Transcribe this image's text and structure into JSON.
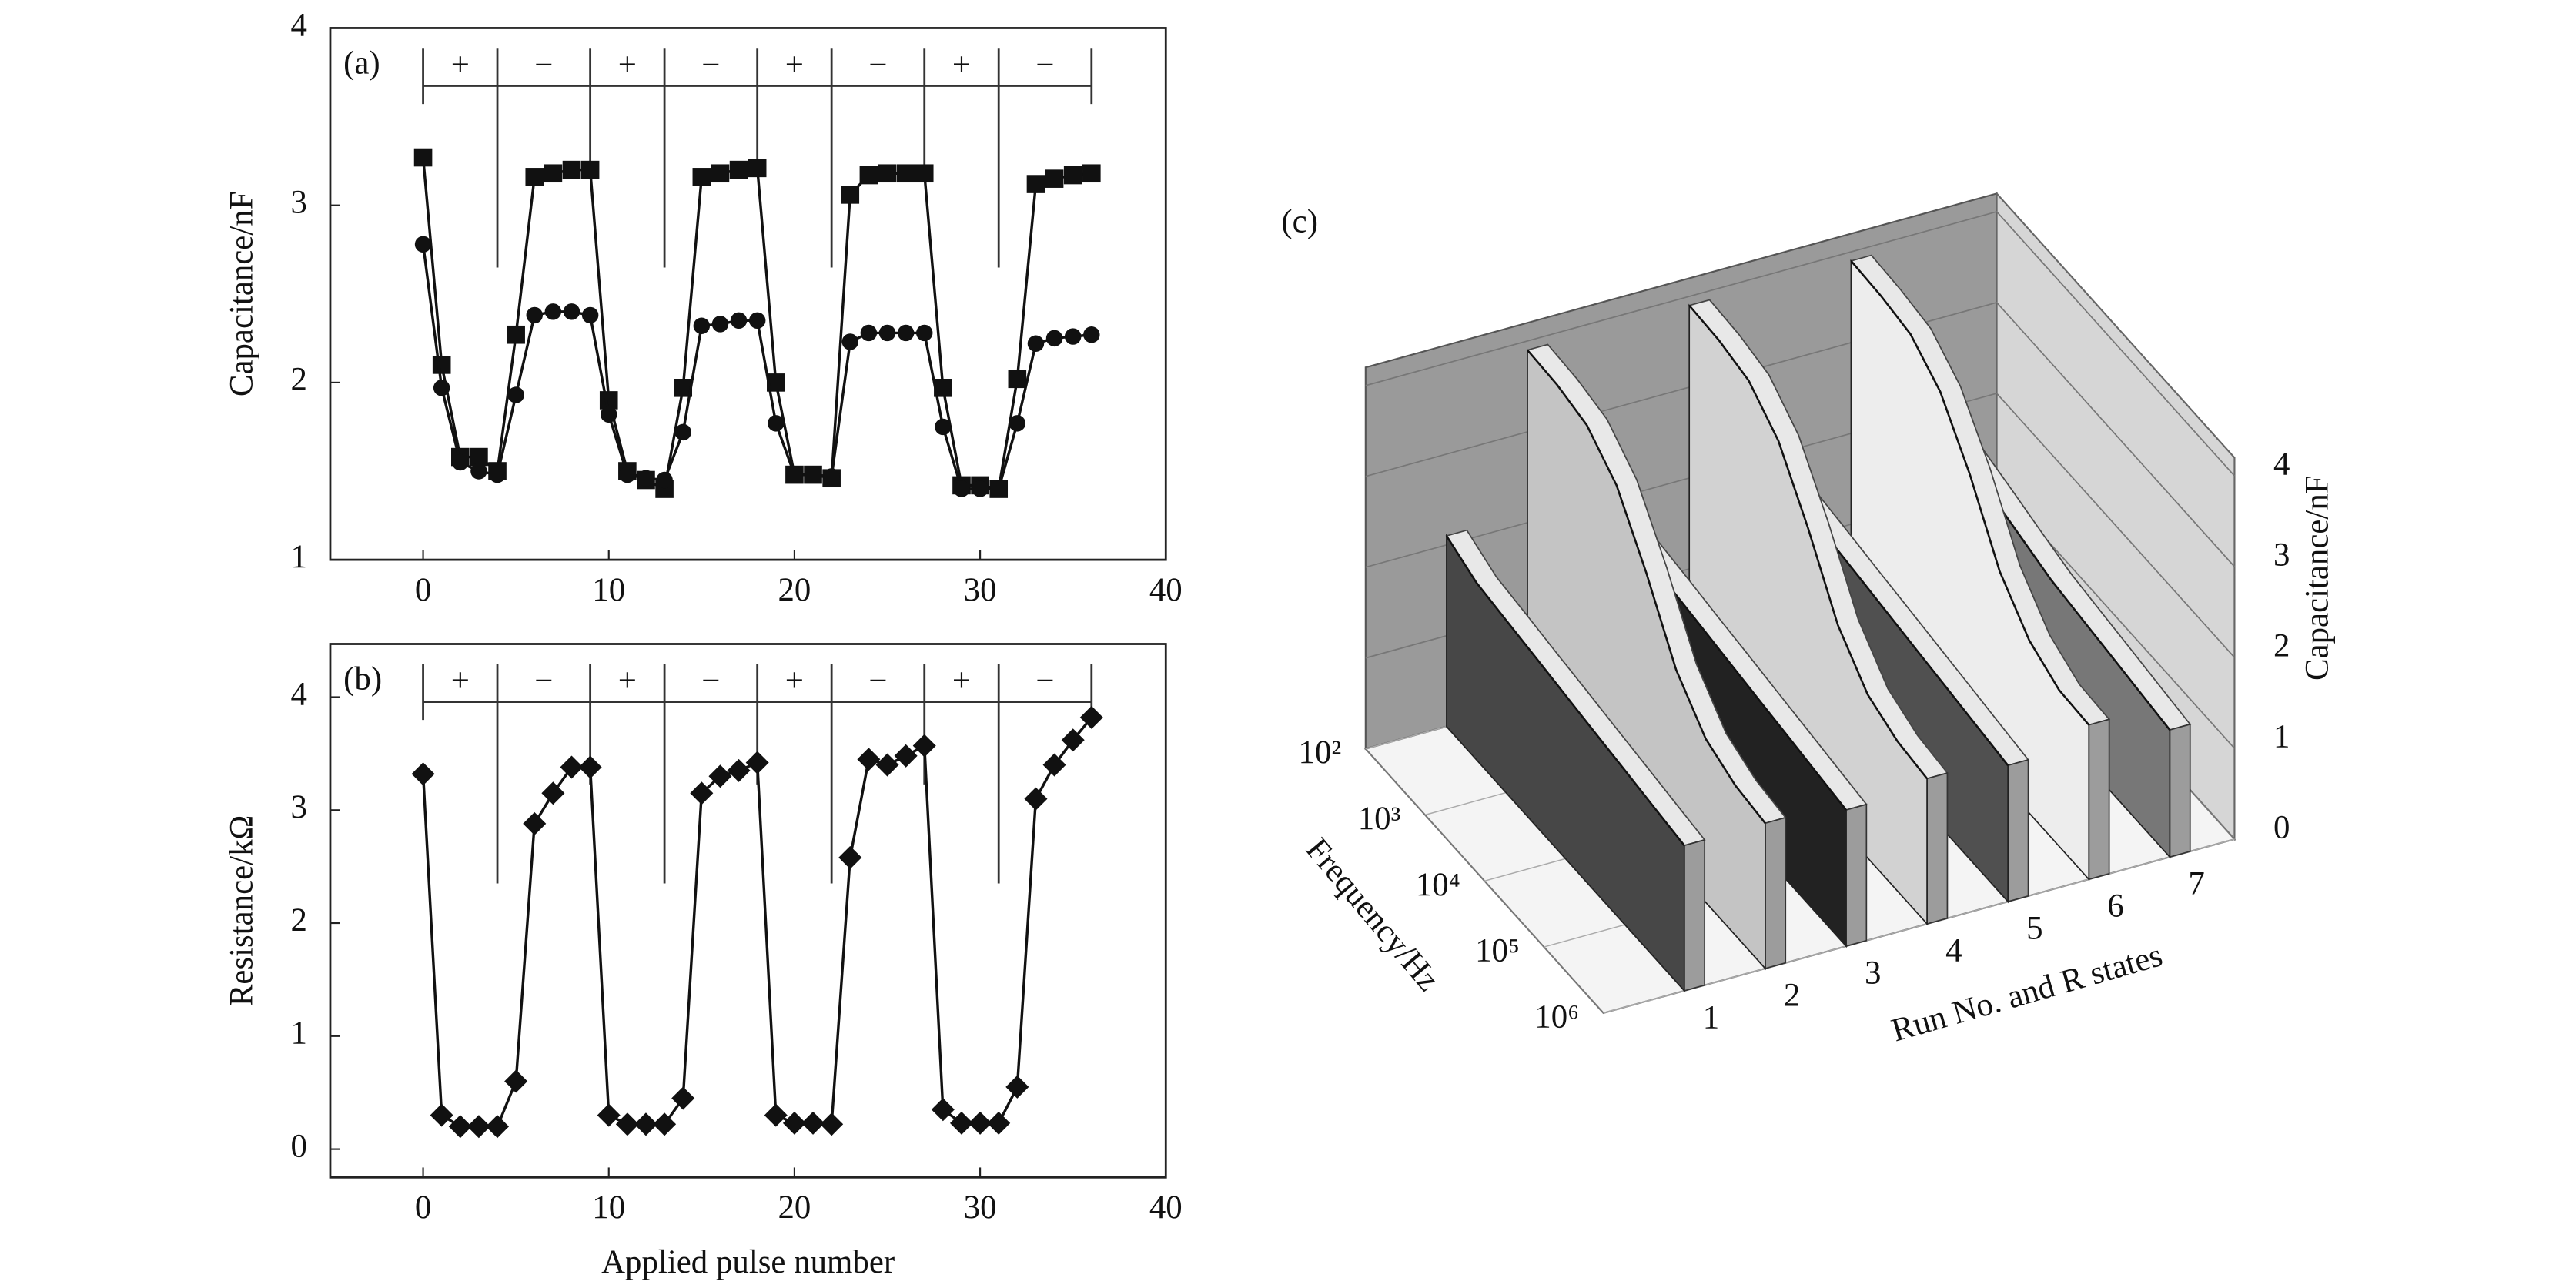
{
  "chart_data": [
    {
      "type": "line",
      "panel_label": "(a)",
      "ylabel": "Capacitance/nF",
      "x": [
        0,
        1,
        2,
        3,
        4,
        5,
        6,
        7,
        8,
        9,
        10,
        11,
        12,
        13,
        14,
        15,
        16,
        17,
        18,
        19,
        20,
        21,
        22,
        23,
        24,
        25,
        26,
        27,
        28,
        29,
        30,
        31,
        32,
        33,
        34,
        35,
        36
      ],
      "series": [
        {
          "marker": "square",
          "color": "#111111",
          "values": [
            3.27,
            2.1,
            1.58,
            1.58,
            1.5,
            2.27,
            3.16,
            3.18,
            3.2,
            3.2,
            1.9,
            1.5,
            1.45,
            1.4,
            1.97,
            3.16,
            3.18,
            3.2,
            3.21,
            2.0,
            1.48,
            1.48,
            1.46,
            3.06,
            3.17,
            3.18,
            3.18,
            3.18,
            1.97,
            1.42,
            1.42,
            1.4,
            2.02,
            3.12,
            3.15,
            3.17,
            3.18
          ]
        },
        {
          "marker": "circle",
          "color": "#111111",
          "values": [
            2.78,
            1.97,
            1.55,
            1.5,
            1.48,
            1.93,
            2.38,
            2.4,
            2.4,
            2.38,
            1.82,
            1.48,
            1.46,
            1.45,
            1.72,
            2.32,
            2.33,
            2.35,
            2.35,
            1.77,
            1.48,
            1.48,
            1.47,
            2.23,
            2.28,
            2.28,
            2.28,
            2.28,
            1.75,
            1.4,
            1.4,
            1.4,
            1.77,
            2.22,
            2.25,
            2.26,
            2.27
          ]
        }
      ],
      "xlim": [
        -5,
        40
      ],
      "xticks": [
        0,
        10,
        20,
        30,
        40
      ],
      "ylim": [
        1,
        4
      ],
      "yticks": [
        1,
        2,
        3,
        4
      ],
      "polarity_boundaries": [
        0,
        4,
        9,
        13,
        18,
        22,
        27,
        31,
        36
      ],
      "polarity_labels": [
        "+",
        "−",
        "+",
        "−",
        "+",
        "−",
        "+",
        "−"
      ]
    },
    {
      "type": "line",
      "panel_label": "(b)",
      "ylabel": "Resistance/kΩ",
      "xlabel": "Applied pulse number",
      "x": [
        0,
        1,
        2,
        3,
        4,
        5,
        6,
        7,
        8,
        9,
        10,
        11,
        12,
        13,
        14,
        15,
        16,
        17,
        18,
        19,
        20,
        21,
        22,
        23,
        24,
        25,
        26,
        27,
        28,
        29,
        30,
        31,
        32,
        33,
        34,
        35,
        36
      ],
      "series": [
        {
          "marker": "diamond",
          "color": "#111111",
          "values": [
            3.32,
            0.3,
            0.2,
            0.2,
            0.2,
            0.6,
            2.88,
            3.15,
            3.38,
            3.38,
            0.3,
            0.22,
            0.22,
            0.22,
            0.45,
            3.15,
            3.3,
            3.35,
            3.42,
            0.3,
            0.23,
            0.23,
            0.22,
            2.58,
            3.45,
            3.4,
            3.48,
            3.57,
            0.35,
            0.23,
            0.23,
            0.23,
            0.55,
            3.1,
            3.4,
            3.62,
            3.82
          ]
        }
      ],
      "xlim": [
        -5,
        40
      ],
      "xticks": [
        0,
        10,
        20,
        30,
        40
      ],
      "ylim": [
        -0.25,
        4.47
      ],
      "yticks": [
        0,
        1,
        2,
        3,
        4
      ],
      "polarity_boundaries": [
        0,
        4,
        9,
        13,
        18,
        22,
        27,
        31,
        36
      ],
      "polarity_labels": [
        "+",
        "−",
        "+",
        "−",
        "+",
        "−",
        "+",
        "−"
      ]
    },
    {
      "type": "wall3d",
      "panel_label": "(c)",
      "xlabel": "Frequency/Hz",
      "ylabel": "Run No. and R states",
      "zlabel": "Capacitance/nF",
      "x": [
        100,
        316,
        1000,
        3162,
        10000,
        31623,
        100000,
        316228,
        1000000
      ],
      "xscale": "log",
      "xticks": [
        {
          "value": 100,
          "label": "10²"
        },
        {
          "value": 1000,
          "label": "10³"
        },
        {
          "value": 10000,
          "label": "10⁴"
        },
        {
          "value": 100000,
          "label": "10⁵"
        },
        {
          "value": 1000000,
          "label": "10⁶"
        }
      ],
      "categories": [
        "1",
        "2",
        "3",
        "4",
        "5",
        "6",
        "7"
      ],
      "zlim": [
        0,
        4
      ],
      "zticks": [
        0,
        1,
        2,
        3,
        4
      ],
      "series": [
        {
          "color": "#474747",
          "values": [
            2.1,
            1.95,
            1.9,
            1.85,
            1.8,
            1.75,
            1.7,
            1.65,
            1.6
          ]
        },
        {
          "color": "#c4c4c4",
          "values": [
            3.9,
            3.88,
            3.8,
            3.5,
            2.9,
            2.2,
            1.8,
            1.65,
            1.6
          ]
        },
        {
          "color": "#222222",
          "values": [
            1.9,
            1.85,
            1.8,
            1.75,
            1.7,
            1.65,
            1.6,
            1.55,
            1.5
          ]
        },
        {
          "color": "#d2d2d2",
          "values": [
            3.9,
            3.88,
            3.8,
            3.5,
            2.9,
            2.2,
            1.8,
            1.65,
            1.6
          ]
        },
        {
          "color": "#505050",
          "values": [
            1.9,
            1.85,
            1.8,
            1.75,
            1.7,
            1.65,
            1.6,
            1.55,
            1.5
          ]
        },
        {
          "color": "#ededed",
          "values": [
            3.9,
            3.88,
            3.82,
            3.55,
            3.0,
            2.3,
            1.9,
            1.72,
            1.7
          ]
        },
        {
          "color": "#777777",
          "values": [
            2.0,
            1.9,
            1.8,
            1.7,
            1.6,
            1.55,
            1.5,
            1.45,
            1.4
          ]
        }
      ]
    }
  ]
}
